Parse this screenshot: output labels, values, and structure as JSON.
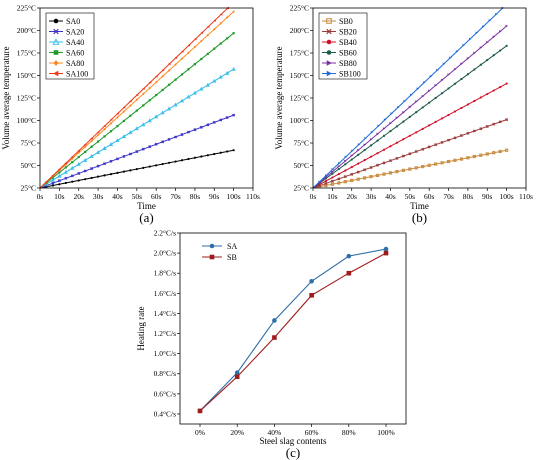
{
  "chart_data": [
    {
      "type": "line",
      "panel_label": "(a)",
      "xlabel": "Time",
      "ylabel": "Volume average temperature",
      "xlim": [
        0,
        110
      ],
      "ylim": [
        25,
        225
      ],
      "x_ticks": [
        "0s",
        "10s",
        "20s",
        "30s",
        "40s",
        "50s",
        "60s",
        "70s",
        "80s",
        "90s",
        "100s",
        "110s"
      ],
      "y_ticks": [
        "25°C",
        "50°C",
        "75°C",
        "100°C",
        "125°C",
        "150°C",
        "175°C",
        "200°C",
        "225°C"
      ],
      "legend_position": "top-left",
      "series": [
        {
          "name": "SA0",
          "color": "#000000",
          "marker": "circle",
          "x": [
            0,
            100
          ],
          "y": [
            25,
            67
          ]
        },
        {
          "name": "SA20",
          "color": "#3b32c8",
          "marker": "x",
          "x": [
            0,
            100
          ],
          "y": [
            25,
            106
          ]
        },
        {
          "name": "SA40",
          "color": "#33bdea",
          "marker": "triangle",
          "x": [
            0,
            100
          ],
          "y": [
            25,
            157
          ]
        },
        {
          "name": "SA60",
          "color": "#1f9a2a",
          "marker": "square",
          "x": [
            0,
            100
          ],
          "y": [
            25,
            197
          ]
        },
        {
          "name": "SA80",
          "color": "#ff8a1f",
          "marker": "diamond",
          "x": [
            0,
            100
          ],
          "y": [
            25,
            221
          ]
        },
        {
          "name": "SA100",
          "color": "#ee3a1a",
          "marker": "triangle-left",
          "x": [
            0,
            97
          ],
          "y": [
            25,
            225
          ]
        }
      ]
    },
    {
      "type": "line",
      "panel_label": "(b)",
      "xlabel": "Time",
      "ylabel": "Volume average temperature",
      "xlim": [
        0,
        110
      ],
      "ylim": [
        25,
        225
      ],
      "x_ticks": [
        "0s",
        "10s",
        "20s",
        "30s",
        "40s",
        "50s",
        "60s",
        "70s",
        "80s",
        "90s",
        "100s",
        "110s"
      ],
      "y_ticks": [
        "25°C",
        "50°C",
        "75°C",
        "100°C",
        "125°C",
        "150°C",
        "175°C",
        "200°C",
        "225°C"
      ],
      "legend_position": "top-left",
      "series": [
        {
          "name": "SB0",
          "color": "#c98a3c",
          "marker": "square-open",
          "x": [
            0,
            100
          ],
          "y": [
            25,
            67
          ]
        },
        {
          "name": "SB20",
          "color": "#9b3b3b",
          "marker": "x",
          "x": [
            0,
            100
          ],
          "y": [
            25,
            101
          ]
        },
        {
          "name": "SB40",
          "color": "#d0102a",
          "marker": "circle",
          "x": [
            0,
            100
          ],
          "y": [
            25,
            141
          ]
        },
        {
          "name": "SB60",
          "color": "#1c5a4a",
          "marker": "circle",
          "x": [
            0,
            100
          ],
          "y": [
            25,
            183
          ]
        },
        {
          "name": "SB80",
          "color": "#7a2fa2",
          "marker": "triangle-right",
          "x": [
            0,
            100
          ],
          "y": [
            25,
            205
          ]
        },
        {
          "name": "SB100",
          "color": "#1f6cd8",
          "marker": "triangle-right",
          "x": [
            0,
            98
          ],
          "y": [
            25,
            225
          ]
        }
      ]
    },
    {
      "type": "line",
      "panel_label": "(c)",
      "xlabel": "Steel slag contents",
      "ylabel": "Heating rate",
      "categories": [
        "0%",
        "20%",
        "40%",
        "60%",
        "80%",
        "100%"
      ],
      "ylim": [
        0.3,
        2.2
      ],
      "y_ticks": [
        "0.4°C/s",
        "0.6°C/s",
        "0.8°C/s",
        "1.0°C/s",
        "1.2°C/s",
        "1.4°C/s",
        "1.6°C/s",
        "1.8°C/s",
        "2.0°C/s",
        "2.2°C/s"
      ],
      "legend_position": "top-left",
      "series": [
        {
          "name": "SA",
          "color": "#2f6ea8",
          "marker": "circle",
          "values": [
            0.43,
            0.81,
            1.33,
            1.72,
            1.97,
            2.04
          ]
        },
        {
          "name": "SB",
          "color": "#a01c1c",
          "marker": "square",
          "values": [
            0.43,
            0.77,
            1.16,
            1.58,
            1.8,
            2.0
          ]
        }
      ]
    }
  ]
}
